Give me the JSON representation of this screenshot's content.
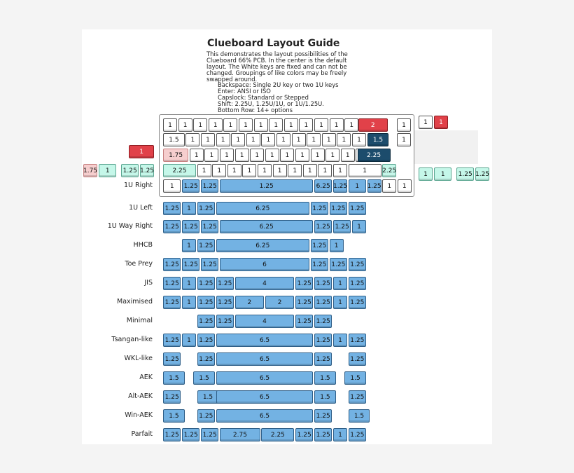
{
  "title": "Clueboard Layout Guide",
  "intro_lines": [
    "This demonstrates the layout possibilities of the",
    "Clueboard 66% PCB. In the center is the default",
    "layout. The White keys are fixed and can not be",
    "changed. Groupings of like colors may be freely",
    "swapped around."
  ],
  "options": [
    "Backspace: Single 2U key or two 1U keys",
    "Enter: ANSI or ISO",
    "Capslock: Standard or Stepped",
    "Shift: 2.25U, 1.25U/1U, or 1U/1.25U.",
    "Bottom Row: 14+ options"
  ],
  "colors": {
    "fixed": "#ffffff",
    "bottom_row": "#73b2e3",
    "shift": "#c5f7e9",
    "backspace": "#e14149",
    "capslock": "#f6cece",
    "enter": "#1c4c6c"
  },
  "top_keys": [
    {
      "label": "1",
      "color": "w"
    },
    {
      "label": "1",
      "color": "w"
    },
    {
      "label": "1",
      "color": "w"
    },
    {
      "label": "1",
      "color": "w"
    },
    {
      "label": "1",
      "color": "w"
    },
    {
      "label": "1",
      "color": "w"
    },
    {
      "label": "1",
      "color": "w"
    },
    {
      "label": "1",
      "color": "w"
    },
    {
      "label": "1",
      "color": "w"
    },
    {
      "label": "1",
      "color": "w"
    },
    {
      "label": "1",
      "color": "w"
    },
    {
      "label": "1",
      "color": "w"
    },
    {
      "label": "1",
      "color": "w"
    },
    {
      "label": "2",
      "color": "r"
    },
    {
      "label": "1",
      "color": "w"
    },
    {
      "label": "1.5",
      "color": "w"
    },
    {
      "label": "1",
      "color": "w"
    },
    {
      "label": "1",
      "color": "w"
    },
    {
      "label": "1",
      "color": "w"
    },
    {
      "label": "1",
      "color": "w"
    },
    {
      "label": "1",
      "color": "w"
    },
    {
      "label": "1",
      "color": "w"
    },
    {
      "label": "1",
      "color": "w"
    },
    {
      "label": "1",
      "color": "w"
    },
    {
      "label": "1",
      "color": "w"
    },
    {
      "label": "1",
      "color": "w"
    },
    {
      "label": "1",
      "color": "w"
    },
    {
      "label": "1",
      "color": "w"
    },
    {
      "label": "1.5",
      "color": "d"
    },
    {
      "label": "1",
      "color": "w"
    },
    {
      "label": "1.75",
      "color": "p"
    },
    {
      "label": "1",
      "color": "w"
    },
    {
      "label": "1",
      "color": "w"
    },
    {
      "label": "1",
      "color": "w"
    },
    {
      "label": "1",
      "color": "w"
    },
    {
      "label": "1",
      "color": "w"
    },
    {
      "label": "1",
      "color": "w"
    },
    {
      "label": "1",
      "color": "w"
    },
    {
      "label": "1",
      "color": "w"
    },
    {
      "label": "1",
      "color": "w"
    },
    {
      "label": "1",
      "color": "w"
    },
    {
      "label": "1",
      "color": "w"
    },
    {
      "label": "1",
      "color": "w"
    },
    {
      "label": "2.25",
      "color": "d"
    },
    {
      "label": "2.25",
      "color": "m"
    },
    {
      "label": "1",
      "color": "w"
    },
    {
      "label": "1",
      "color": "w"
    },
    {
      "label": "1",
      "color": "w"
    },
    {
      "label": "1",
      "color": "w"
    },
    {
      "label": "1",
      "color": "w"
    },
    {
      "label": "1",
      "color": "w"
    },
    {
      "label": "1",
      "color": "w"
    },
    {
      "label": "1",
      "color": "w"
    },
    {
      "label": "1",
      "color": "w"
    },
    {
      "label": "1",
      "color": "w"
    },
    {
      "label": "1",
      "color": "w"
    },
    {
      "label": "2.25",
      "color": "m"
    },
    {
      "label": "1",
      "color": "w"
    },
    {
      "label": "1.25",
      "color": "b"
    },
    {
      "label": "1.25",
      "color": "b"
    },
    {
      "label": "1.25",
      "color": "b"
    },
    {
      "label": "6.25",
      "color": "b"
    },
    {
      "label": "1.25",
      "color": "b"
    },
    {
      "label": "1",
      "color": "b"
    },
    {
      "label": "1.25",
      "color": "b"
    },
    {
      "label": "1",
      "color": "w"
    },
    {
      "label": "1",
      "color": "w"
    },
    {
      "label": "1",
      "color": "w"
    },
    {
      "label": "1",
      "color": "r"
    },
    {
      "label": "1",
      "color": "r"
    },
    {
      "label": "1.75",
      "color": "p"
    },
    {
      "label": "1",
      "color": "m"
    },
    {
      "label": "1.25",
      "color": "m"
    },
    {
      "label": "1.25",
      "color": "m"
    },
    {
      "label": "1",
      "color": "m"
    },
    {
      "label": "1",
      "color": "m"
    },
    {
      "label": "1.25",
      "color": "m"
    },
    {
      "label": "1.25",
      "color": "m"
    },
    {
      "label": "1",
      "color": "m"
    }
  ],
  "layouts": [
    {
      "name": "1U Right",
      "keys": []
    },
    {
      "name": "1U Left",
      "keys": [
        "1.25",
        "1",
        "1.25",
        "6.25",
        "1.25",
        "1.25",
        "1.25"
      ]
    },
    {
      "name": "1U Way Right",
      "keys": [
        "1.25",
        "1.25",
        "1.25",
        "6.25",
        "1.25",
        "1.25",
        "1"
      ]
    },
    {
      "name": "HHCB",
      "keys": [
        "1",
        "1.25",
        "6.25",
        "1.25",
        "1"
      ]
    },
    {
      "name": "Toe Prey",
      "keys": [
        "1.25",
        "1.25",
        "1.25",
        "6",
        "1.25",
        "1.25",
        "1.25"
      ]
    },
    {
      "name": "JIS",
      "keys": [
        "1.25",
        "1",
        "1.25",
        "1.25",
        "4",
        "1.25",
        "1.25",
        "1",
        "1.25"
      ]
    },
    {
      "name": "Maximised",
      "keys": [
        "1.25",
        "1",
        "1.25",
        "1.25",
        "2",
        "2",
        "1.25",
        "1.25",
        "1",
        "1.25"
      ]
    },
    {
      "name": "Minimal",
      "keys": [
        "1.25",
        "1.25",
        "4",
        "1.25",
        "1.25"
      ]
    },
    {
      "name": "Tsangan-like",
      "keys": [
        "1.25",
        "1",
        "1.25",
        "6.5",
        "1.25",
        "1",
        "1.25"
      ]
    },
    {
      "name": "WKL-like",
      "keys": [
        "1.25",
        "1.25",
        "6.5",
        "1.25",
        "1.25"
      ]
    },
    {
      "name": "AEK",
      "keys": [
        "1.5",
        "1.5",
        "6.5",
        "1.5",
        "1.5"
      ]
    },
    {
      "name": "Alt-AEK",
      "keys": [
        "1.25",
        "1.5",
        "6.5",
        "1.5",
        "1.25"
      ]
    },
    {
      "name": "Win-AEK",
      "keys": [
        "1.5",
        "1.25",
        "6.5",
        "1.25",
        "1.5"
      ]
    },
    {
      "name": "Parfait",
      "keys": [
        "1.25",
        "1.25",
        "1.25",
        "2.75",
        "2.25",
        "1.25",
        "1.25",
        "1",
        "1.25"
      ]
    }
  ]
}
